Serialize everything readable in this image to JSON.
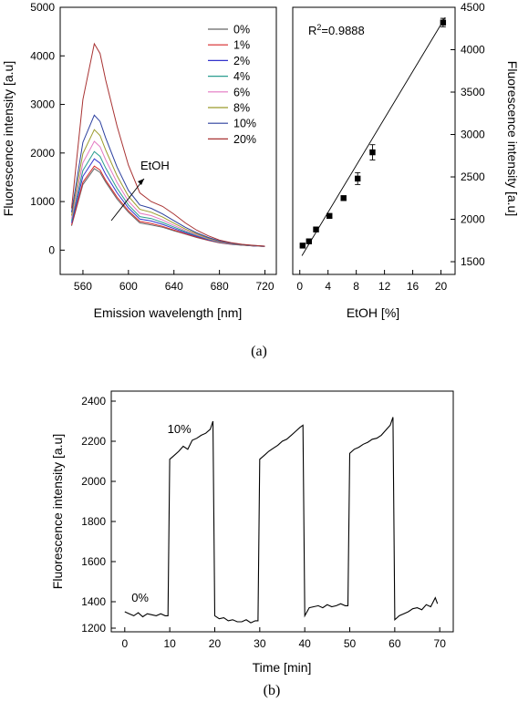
{
  "chart_data": [
    {
      "type": "line",
      "xlabel": "Emission wavelength [nm]",
      "ylabel": "Fluorescence intensity [a.u]",
      "xlim": [
        540,
        730
      ],
      "ylim": [
        -500,
        5000
      ],
      "xticks": [
        560,
        600,
        640,
        680,
        720
      ],
      "yticks": [
        0,
        1000,
        2000,
        3000,
        4000,
        5000
      ],
      "legend_position": "top-right",
      "annotation": "EtOH",
      "x": [
        550,
        560,
        570,
        575,
        580,
        590,
        600,
        610,
        620,
        630,
        640,
        650,
        660,
        670,
        680,
        690,
        700,
        710,
        720
      ],
      "series": [
        {
          "name": "0%",
          "color": "#666666",
          "values": [
            500,
            1350,
            1680,
            1600,
            1400,
            1050,
            780,
            560,
            520,
            470,
            400,
            330,
            260,
            200,
            150,
            120,
            100,
            85,
            75
          ]
        },
        {
          "name": "1%",
          "color": "#d62728",
          "values": [
            520,
            1400,
            1730,
            1650,
            1440,
            1090,
            810,
            590,
            550,
            490,
            415,
            340,
            270,
            205,
            155,
            125,
            102,
            86,
            76
          ]
        },
        {
          "name": "2%",
          "color": "#3333cc",
          "values": [
            560,
            1520,
            1880,
            1790,
            1560,
            1180,
            870,
            640,
            600,
            530,
            445,
            360,
            285,
            215,
            160,
            128,
            104,
            88,
            77
          ]
        },
        {
          "name": "4%",
          "color": "#2a9d8f",
          "values": [
            600,
            1640,
            2030,
            1930,
            1690,
            1270,
            930,
            690,
            650,
            570,
            475,
            380,
            300,
            225,
            165,
            131,
            106,
            89,
            78
          ]
        },
        {
          "name": "6%",
          "color": "#e377c2",
          "values": [
            650,
            1800,
            2240,
            2130,
            1860,
            1390,
            1010,
            760,
            710,
            620,
            510,
            405,
            315,
            235,
            172,
            135,
            108,
            91,
            79
          ]
        },
        {
          "name": "8%",
          "color": "#9a9a2a",
          "values": [
            710,
            1990,
            2480,
            2360,
            2060,
            1530,
            1110,
            840,
            780,
            680,
            555,
            435,
            335,
            248,
            180,
            140,
            111,
            93,
            80
          ]
        },
        {
          "name": "10%",
          "color": "#2b3f9e",
          "values": [
            780,
            2220,
            2780,
            2650,
            2310,
            1710,
            1230,
            930,
            860,
            745,
            605,
            470,
            357,
            262,
            188,
            145,
            114,
            95,
            81
          ]
        },
        {
          "name": "20%",
          "color": "#a83232",
          "values": [
            860,
            3100,
            4250,
            4050,
            3500,
            2550,
            1750,
            1180,
            1000,
            900,
            740,
            560,
            410,
            295,
            205,
            155,
            120,
            98,
            82
          ]
        }
      ]
    },
    {
      "type": "scatter",
      "xlabel": "EtOH [%]",
      "ylabel": "Fluorescence intensity [a.u]",
      "xlim": [
        -1,
        22
      ],
      "ylim": [
        1350,
        4500
      ],
      "xticks": [
        0,
        4,
        8,
        12,
        16,
        20
      ],
      "yticks": [
        1500,
        2000,
        2500,
        3000,
        3500,
        4000,
        4500
      ],
      "annotation_prefix": "R",
      "annotation_sup": "2",
      "annotation_value": "=0.9888",
      "points": [
        {
          "x": 0.4,
          "y": 1690,
          "err": 15
        },
        {
          "x": 1.3,
          "y": 1740,
          "err": 15
        },
        {
          "x": 2.3,
          "y": 1880,
          "err": 20
        },
        {
          "x": 4.2,
          "y": 2040,
          "err": 20
        },
        {
          "x": 6.2,
          "y": 2250,
          "err": 25
        },
        {
          "x": 8.2,
          "y": 2480,
          "err": 70
        },
        {
          "x": 10.3,
          "y": 2790,
          "err": 90
        },
        {
          "x": 20.3,
          "y": 4320,
          "err": 50
        }
      ],
      "fit": {
        "x": [
          0.3,
          20.6
        ],
        "y": [
          1570,
          4380
        ]
      }
    },
    {
      "type": "line",
      "xlabel": "Time [min]",
      "ylabel": "Fluorescence intensity [a.u]",
      "xlim": [
        -3,
        73
      ],
      "ylim": [
        1250,
        2450
      ],
      "xticks": [
        0,
        10,
        20,
        30,
        40,
        50,
        60,
        70
      ],
      "yticks": [
        1200,
        1400,
        1600,
        1800,
        2000,
        2200,
        2400
      ],
      "annotations": [
        {
          "text": "0%",
          "x": 1.5,
          "y": 1400
        },
        {
          "text": "10%",
          "x": 9.5,
          "y": 2240
        }
      ],
      "series": [
        {
          "name": "",
          "color": "#000000",
          "x": [
            0,
            1,
            2,
            3,
            4,
            5,
            6,
            7,
            8,
            9,
            9.6,
            10,
            11,
            12,
            13,
            14,
            15,
            16,
            17,
            18,
            19,
            19.6,
            20,
            21,
            22,
            23,
            24,
            25,
            26,
            27,
            28,
            29,
            29.6,
            30,
            31,
            32,
            33,
            34,
            35,
            36,
            37,
            38,
            39,
            39.6,
            40,
            41,
            42,
            43,
            44,
            45,
            46,
            47,
            48,
            49,
            49.6,
            50,
            51,
            52,
            53,
            54,
            55,
            56,
            57,
            58,
            59,
            59.6,
            60,
            61,
            62,
            63,
            64,
            65,
            66,
            67,
            68,
            69,
            69.5
          ],
          "values": [
            1350,
            1340,
            1330,
            1345,
            1325,
            1340,
            1335,
            1330,
            1340,
            1330,
            1330,
            2110,
            2130,
            2150,
            2175,
            2160,
            2205,
            2215,
            2230,
            2240,
            2260,
            2300,
            1330,
            1315,
            1320,
            1305,
            1310,
            1300,
            1300,
            1310,
            1295,
            1305,
            1305,
            2110,
            2130,
            2150,
            2165,
            2180,
            2200,
            2210,
            2230,
            2250,
            2270,
            2280,
            1330,
            1370,
            1375,
            1380,
            1370,
            1385,
            1375,
            1380,
            1390,
            1380,
            1380,
            2140,
            2160,
            2170,
            2185,
            2195,
            2210,
            2215,
            2230,
            2255,
            2280,
            2320,
            1310,
            1330,
            1340,
            1350,
            1365,
            1370,
            1360,
            1385,
            1375,
            1420,
            1390
          ]
        }
      ]
    }
  ],
  "captions": [
    "(a)",
    "(b)"
  ]
}
